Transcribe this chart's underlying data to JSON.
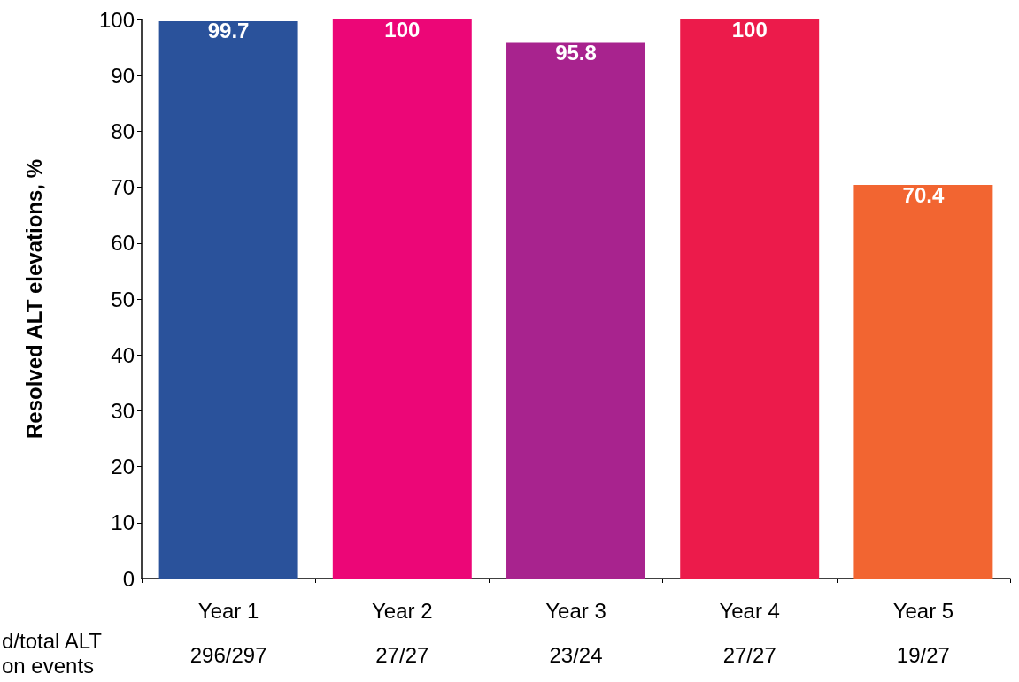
{
  "chart_data": {
    "type": "bar",
    "ylabel": "Resolved ALT elevations, %",
    "categories": [
      "Year 1",
      "Year 2",
      "Year 3",
      "Year 4",
      "Year 5"
    ],
    "values": [
      99.7,
      100,
      95.8,
      100,
      70.4
    ],
    "colors": [
      "#2a529b",
      "#ec0677",
      "#a8238e",
      "#ec1b4b",
      "#f26531"
    ],
    "ylim": [
      0,
      100
    ],
    "yticks": [
      0,
      10,
      20,
      30,
      40,
      50,
      60,
      70,
      80,
      90,
      100
    ],
    "grid": false,
    "data_labels": true,
    "annotations": [
      "d/total ALT\non events",
      "296/297",
      "27/27",
      "23/24",
      "27/27",
      "19/27"
    ]
  }
}
